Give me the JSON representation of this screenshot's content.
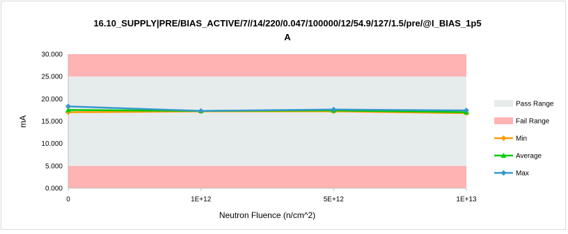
{
  "chart_data": {
    "type": "line",
    "title": "16.10_SUPPLY|PRE/BIAS_ACTIVE/7//14/220/0.047/100000/12/54.9/127/1.5/pre/@I_BIAS_1p5 A",
    "title_lines": [
      "16.10_SUPPLY|PRE/BIAS_ACTIVE/7//14/220/0.047/100000/12/54.9/127/1.5/pre/@I_BIAS_1p5",
      "A"
    ],
    "xlabel": "Neutron Fluence (n/cm^2)",
    "ylabel": "mA",
    "categories": [
      "0",
      "1E+12",
      "5E+12",
      "1E+13"
    ],
    "ylim": [
      0,
      30
    ],
    "yticks": [
      "0.000",
      "5.000",
      "10.000",
      "15.000",
      "20.000",
      "25.000",
      "30.000"
    ],
    "ytick_values": [
      0,
      5,
      10,
      15,
      20,
      25,
      30
    ],
    "grid": false,
    "legend_position": "right",
    "bands": [
      {
        "name": "Fail Range",
        "from": 0,
        "to": 5,
        "color": "#ffb3b3"
      },
      {
        "name": "Pass Range",
        "from": 5,
        "to": 25,
        "color": "#e6ebeb"
      },
      {
        "name": "Fail Range",
        "from": 25,
        "to": 30,
        "color": "#ffb3b3"
      }
    ],
    "series": [
      {
        "name": "Min",
        "values": [
          17.0,
          17.2,
          17.2,
          16.8
        ],
        "color": "#ff9900",
        "marker": "diamond"
      },
      {
        "name": "Average",
        "values": [
          17.5,
          17.3,
          17.4,
          17.0
        ],
        "color": "#00cc00",
        "marker": "triangle"
      },
      {
        "name": "Max",
        "values": [
          18.3,
          17.3,
          17.6,
          17.4
        ],
        "color": "#3399cc",
        "marker": "diamond"
      }
    ],
    "legend": [
      {
        "label": "Pass Range",
        "kind": "band",
        "color": "#e6ebeb"
      },
      {
        "label": "Fail Range",
        "kind": "band",
        "color": "#ffb3b3"
      },
      {
        "label": "Min",
        "kind": "line",
        "color": "#ff9900",
        "marker": "diamond"
      },
      {
        "label": "Average",
        "kind": "line",
        "color": "#00cc00",
        "marker": "triangle"
      },
      {
        "label": "Max",
        "kind": "line",
        "color": "#3399cc",
        "marker": "diamond"
      }
    ]
  }
}
